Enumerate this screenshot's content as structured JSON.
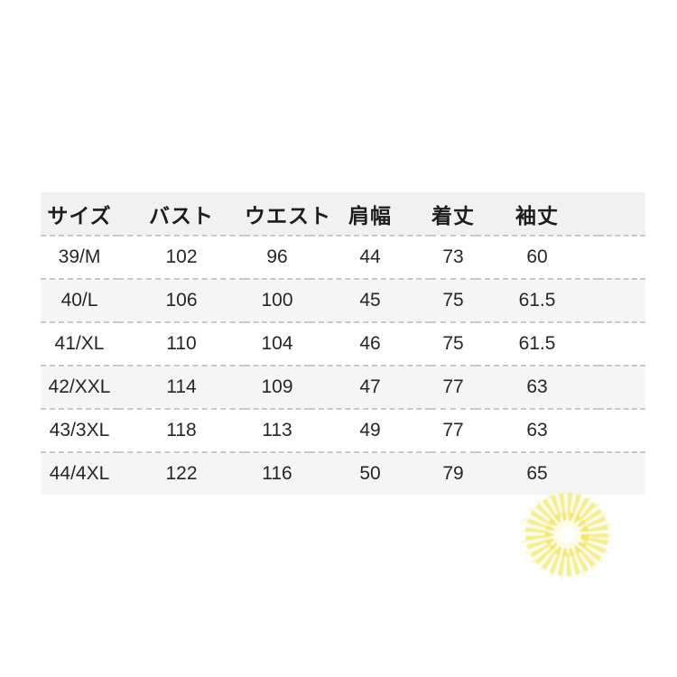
{
  "colors": {
    "page-bg": "#ffffff",
    "header-bg": "#f1f1f1",
    "alt-row-bg": "#f5f5f5",
    "divider": "#c9c9c9",
    "header-text": "#1d1d1d",
    "cell-text": "#262626",
    "sun-petal": "#f6ee8c",
    "sun-inner": "#f2e76e",
    "sun-halo": "#faf5bb",
    "sun-core": "#fdfbe4"
  },
  "table": {
    "columns": [
      "サイズ",
      "バスト",
      "ウエスト",
      "肩幅",
      "着丈",
      "袖丈"
    ],
    "rows": [
      [
        "39/M",
        "102",
        "96",
        "44",
        "73",
        "60"
      ],
      [
        "40/L",
        "106",
        "100",
        "45",
        "75",
        "61.5"
      ],
      [
        "41/XL",
        "110",
        "104",
        "46",
        "75",
        "61.5"
      ],
      [
        "42/XXL",
        "114",
        "109",
        "47",
        "77",
        "63"
      ],
      [
        "43/3XL",
        "118",
        "113",
        "49",
        "77",
        "63"
      ],
      [
        "44/4XL",
        "122",
        "116",
        "50",
        "79",
        "65"
      ]
    ]
  },
  "decoration": {
    "icon": "sun-burst"
  }
}
